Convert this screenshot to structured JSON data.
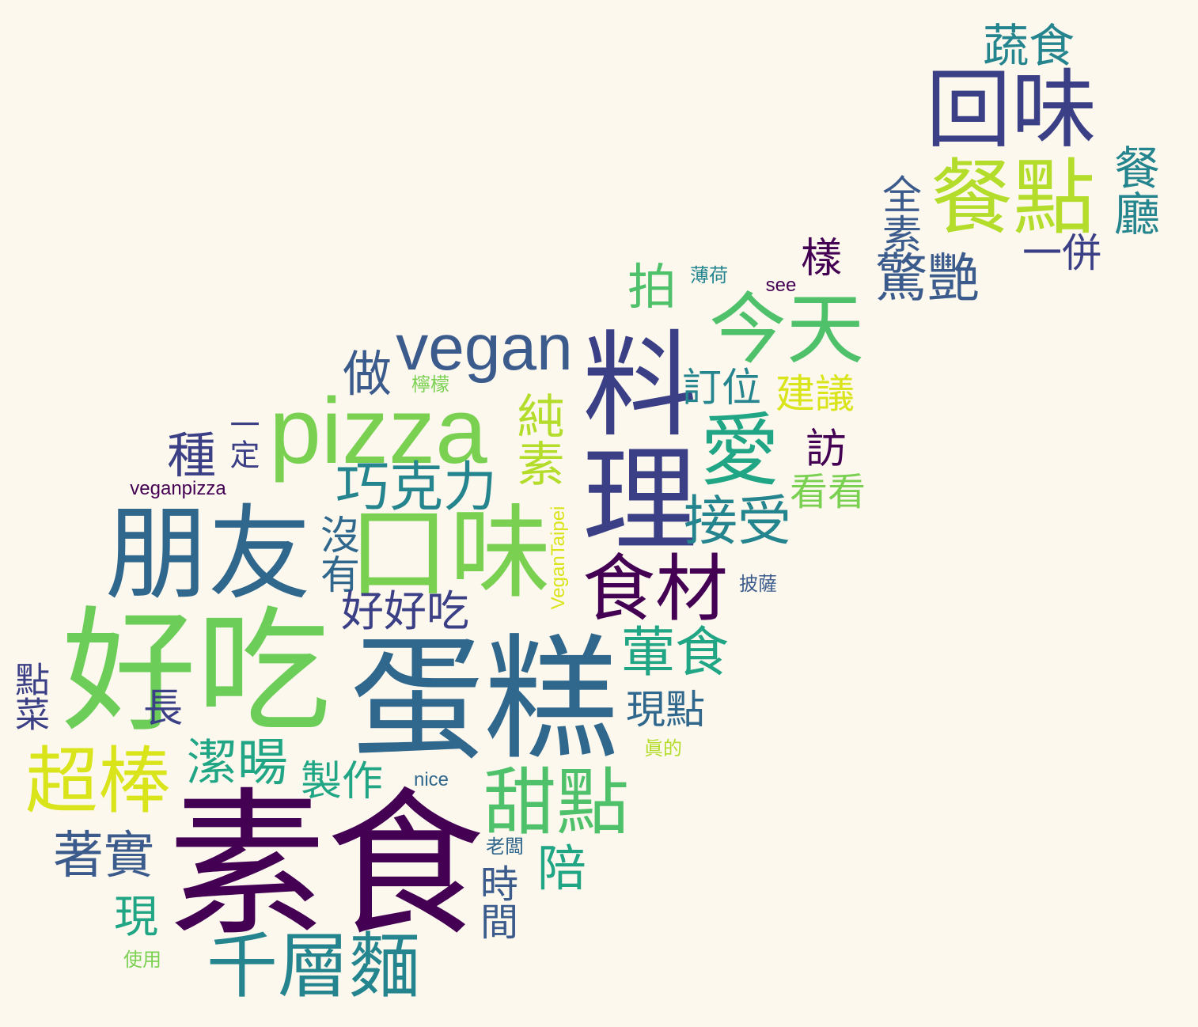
{
  "colors": {
    "background": "#fdf8ee",
    "dark_purple": "#440154",
    "indigo": "#3b3f86",
    "blue": "#30678c",
    "teal": "#25858e",
    "green_teal": "#21a685",
    "green": "#4fc16a",
    "light_green": "#7ad151",
    "yellow_green": "#b3dc2b",
    "yellow": "#d9e41b"
  },
  "words": [
    {
      "text": "素食"
    },
    {
      "text": "蛋糕"
    },
    {
      "text": "好吃"
    },
    {
      "text": "料理"
    },
    {
      "text": "朋友"
    },
    {
      "text": "口味"
    },
    {
      "text": "pizza"
    },
    {
      "text": "回味"
    },
    {
      "text": "餐點"
    },
    {
      "text": "今天"
    },
    {
      "text": "愛"
    },
    {
      "text": "食材"
    },
    {
      "text": "千層麵"
    },
    {
      "text": "超棒"
    },
    {
      "text": "甜點"
    },
    {
      "text": "vegan"
    },
    {
      "text": "巧克力"
    },
    {
      "text": "純素"
    },
    {
      "text": "接受"
    },
    {
      "text": "葷食"
    },
    {
      "text": "潔暘"
    },
    {
      "text": "著實"
    },
    {
      "text": "驚艷"
    },
    {
      "text": "蔬食"
    },
    {
      "text": "餐廳"
    },
    {
      "text": "全素"
    },
    {
      "text": "一併"
    },
    {
      "text": "樣"
    },
    {
      "text": "拍"
    },
    {
      "text": "做"
    },
    {
      "text": "種"
    },
    {
      "text": "一定"
    },
    {
      "text": "沒有"
    },
    {
      "text": "好好吃"
    },
    {
      "text": "建議"
    },
    {
      "text": "訂位"
    },
    {
      "text": "訪"
    },
    {
      "text": "看看"
    },
    {
      "text": "現點"
    },
    {
      "text": "製作"
    },
    {
      "text": "陪"
    },
    {
      "text": "時間"
    },
    {
      "text": "現"
    },
    {
      "text": "點菜"
    },
    {
      "text": "長"
    },
    {
      "text": "VeganTaipei"
    },
    {
      "text": "veganpizza"
    },
    {
      "text": "檸檬"
    },
    {
      "text": "薄荷"
    },
    {
      "text": "see"
    },
    {
      "text": "披薩"
    },
    {
      "text": "眞的"
    },
    {
      "text": "nice"
    },
    {
      "text": "老闆"
    },
    {
      "text": "使用"
    }
  ]
}
